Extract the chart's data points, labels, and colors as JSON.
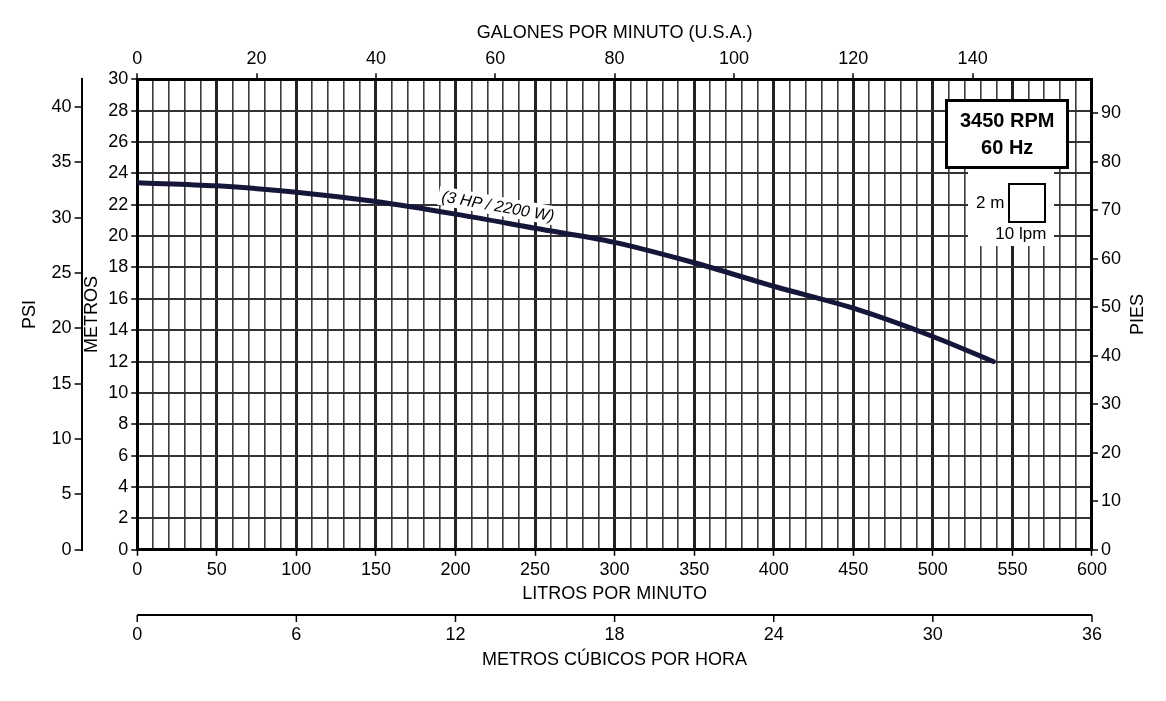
{
  "chart_data": {
    "type": "line",
    "xlabel": "LITROS POR MINUTO",
    "ylabel": "METROS",
    "x2label": "GALONES POR MINUTO (U.S.A.)",
    "y2label": "PSI",
    "y3label": "PIES",
    "annotations": [
      "3450 RPM",
      "60 Hz",
      "2 m",
      "10 lpm",
      "0",
      "6",
      "12",
      "18",
      "24",
      "30",
      "36",
      "METROS CÚBICOS POR HORA"
    ],
    "x": [
      0,
      50,
      100,
      150,
      200,
      250,
      300,
      350,
      400,
      450,
      500,
      538
    ],
    "series": [
      {
        "name": "(3 HP / 2200 W)",
        "color": "#16163a",
        "values": [
          23.4,
          23.2,
          22.8,
          22.2,
          21.4,
          20.5,
          19.6,
          18.3,
          16.8,
          15.4,
          13.6,
          12.0
        ]
      }
    ],
    "xlim": [
      0,
      600
    ],
    "xticks": [
      0,
      {
        "value": 10,
        "label": null
      },
      {
        "value": 20,
        "label": null
      },
      {
        "value": 30,
        "label": null
      },
      {
        "value": 40,
        "label": null
      },
      50,
      {
        "value": 60,
        "label": null
      },
      {
        "value": 70,
        "label": null
      },
      {
        "value": 80,
        "label": null
      },
      {
        "value": 90,
        "label": null
      },
      100,
      {
        "value": 110,
        "label": null
      },
      {
        "value": 120,
        "label": null
      },
      {
        "value": 130,
        "label": null
      },
      {
        "value": 140,
        "label": null
      },
      150,
      {
        "value": 160,
        "label": null
      },
      {
        "value": 170,
        "label": null
      },
      {
        "value": 180,
        "label": null
      },
      {
        "value": 190,
        "label": null
      },
      200,
      {
        "value": 210,
        "label": null
      },
      {
        "value": 220,
        "label": null
      },
      {
        "value": 230,
        "label": null
      },
      {
        "value": 240,
        "label": null
      },
      250,
      {
        "value": 260,
        "label": null
      },
      {
        "value": 270,
        "label": null
      },
      {
        "value": 280,
        "label": null
      },
      {
        "value": 290,
        "label": null
      },
      300,
      {
        "value": 310,
        "label": null
      },
      {
        "value": 320,
        "label": null
      },
      {
        "value": 330,
        "label": null
      },
      {
        "value": 340,
        "label": null
      },
      350,
      {
        "value": 360,
        "label": null
      },
      {
        "value": 370,
        "label": null
      },
      {
        "value": 380,
        "label": null
      },
      {
        "value": 390,
        "label": null
      },
      400,
      {
        "value": 410,
        "label": null
      },
      {
        "value": 420,
        "label": null
      },
      {
        "value": 430,
        "label": null
      },
      {
        "value": 440,
        "label": null
      },
      450,
      {
        "value": 460,
        "label": null
      },
      {
        "value": 470,
        "label": null
      },
      {
        "value": 480,
        "label": null
      },
      {
        "value": 490,
        "label": null
      },
      500,
      {
        "value": 510,
        "label": null
      },
      {
        "value": 520,
        "label": null
      },
      {
        "value": 530,
        "label": null
      },
      {
        "value": 540,
        "label": null
      },
      550,
      {
        "value": 560,
        "label": null
      },
      {
        "value": 570,
        "label": null
      },
      {
        "value": 580,
        "label": null
      },
      {
        "value": 590,
        "label": null
      },
      600
    ],
    "ylim": [
      0,
      30
    ],
    "yticks": [
      0,
      2,
      4,
      6,
      8,
      10,
      12,
      14,
      16,
      18,
      20,
      22,
      24,
      26,
      28,
      30
    ],
    "x2lim": [
      0,
      160
    ],
    "x2ticks": [
      0,
      20,
      40,
      60,
      80,
      100,
      120,
      140
    ],
    "y2lim": [
      0,
      42.5
    ],
    "y2ticks": [
      0,
      5,
      10,
      15,
      20,
      25,
      30,
      35,
      40
    ],
    "y3lim": [
      0,
      97
    ],
    "y3ticks": [
      0,
      10,
      20,
      30,
      40,
      50,
      60,
      70,
      80,
      90
    ],
    "grid": true
  }
}
